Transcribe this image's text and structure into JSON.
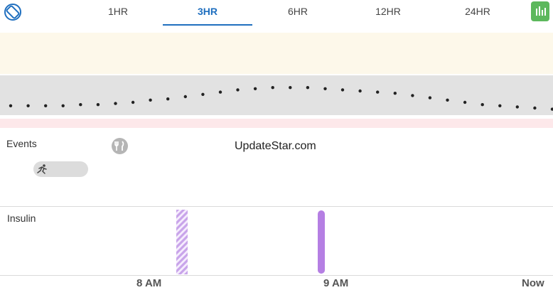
{
  "header": {
    "tabs": [
      {
        "label": "1HR",
        "active": false
      },
      {
        "label": "3HR",
        "active": true
      },
      {
        "label": "6HR",
        "active": false
      },
      {
        "label": "12HR",
        "active": false
      },
      {
        "label": "24HR",
        "active": false
      }
    ],
    "icons": {
      "rotate": "rotate-screen-icon",
      "chart": "bar-chart-icon"
    },
    "accent_color": "#1f6fbf",
    "chart_button_color": "#5cb85c"
  },
  "glucose": {
    "zone_colors": {
      "high": "#fdf8ea",
      "target": "#e2e2e2",
      "low": "#fde8ea"
    },
    "readings": [
      152,
      152,
      152,
      152,
      153,
      153,
      154,
      155,
      157,
      158,
      160,
      162,
      164,
      166,
      167,
      168,
      168,
      168,
      167,
      166,
      165,
      164,
      163,
      161,
      159,
      157,
      155,
      153,
      152,
      151,
      150,
      149
    ]
  },
  "events": {
    "label": "Events",
    "meal_icon": "fork-knife-icon",
    "exercise_icon": "running-icon"
  },
  "watermark": "UpdateStar.com",
  "insulin": {
    "label": "Insulin",
    "basal_color": "#c9a5ea",
    "bolus_color": "#b57fe3"
  },
  "time_axis": {
    "labels": [
      "8 AM",
      "9 AM",
      "Now"
    ]
  }
}
